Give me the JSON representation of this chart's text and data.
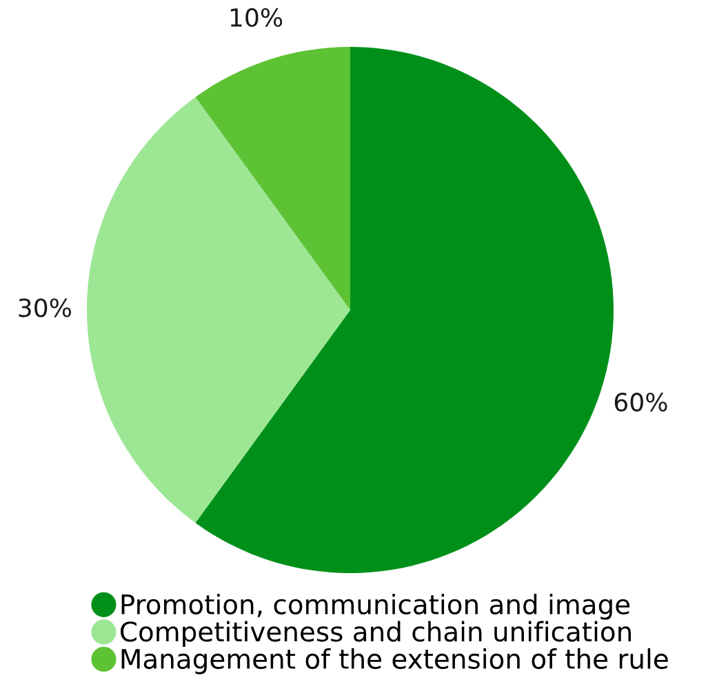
{
  "chart_data": {
    "type": "pie",
    "categories": [
      "Promotion, communication and image",
      "Competitiveness and chain unification",
      "Management of the extension of the rule"
    ],
    "values": [
      60,
      30,
      10
    ],
    "colors": [
      "#00901a",
      "#9ce694",
      "#5dc234"
    ],
    "value_labels": [
      "60%",
      "30%",
      "10%"
    ],
    "legend": "bottom"
  }
}
